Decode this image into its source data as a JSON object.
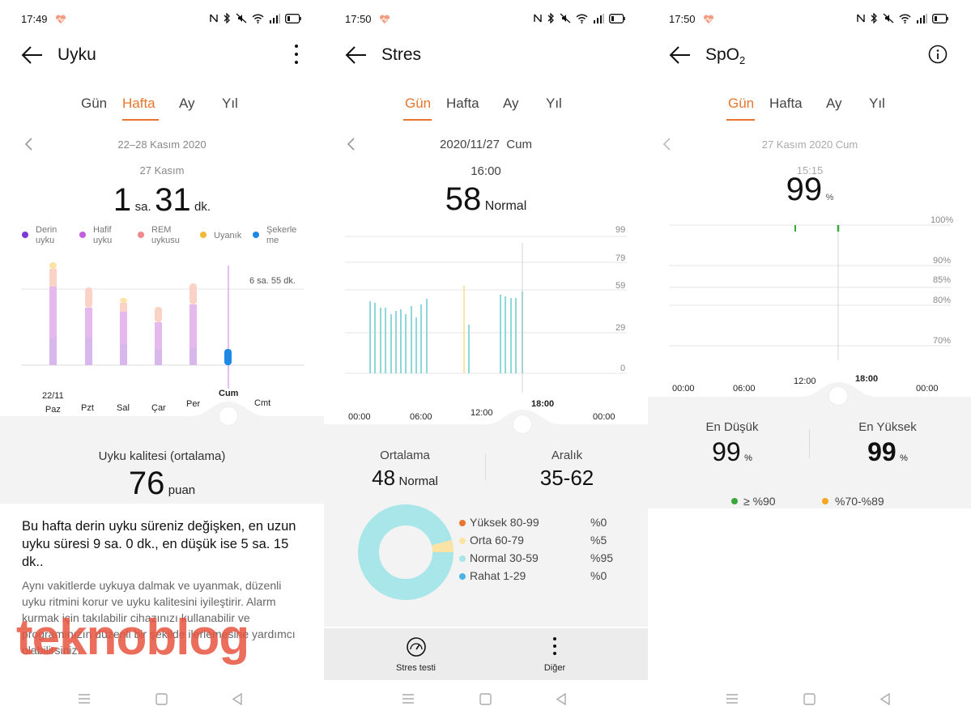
{
  "p1": {
    "status_time": "17:49",
    "title": "Uyku",
    "tabs": [
      "Gün",
      "Hafta",
      "Ay",
      "Yıl"
    ],
    "active_tab": "Hafta",
    "date_range": "22–28 Kasım 2020",
    "selected_date": "27 Kasım",
    "duration_hours": "1",
    "duration_hours_unit": "sa.",
    "duration_minutes": "31",
    "duration_minutes_unit": "dk.",
    "legend": [
      {
        "label": "Derin\nuyku",
        "color": "#7b39d6"
      },
      {
        "label": "Hafif\nuyku",
        "color": "#c25fe0"
      },
      {
        "label": "REM\nuykusu",
        "color": "#f08a8a"
      },
      {
        "label": "Uyanık",
        "color": "#f5b735"
      },
      {
        "label": "Şekerle\nme",
        "color": "#1e88e5"
      }
    ],
    "ref_label": "6 sa. 55 dk.",
    "days": [
      "22/11\nPaz",
      "Pzt",
      "Sal",
      "Çar",
      "Per",
      "Cum",
      "Cmt"
    ],
    "quality_label": "Uyku kalitesi (ortalama)",
    "quality_value": "76",
    "quality_unit": "puan",
    "summary": "Bu hafta derin uyku süreniz değişken, en uzun uyku süresi 9 sa. 0 dk., en düşük ise 5 sa. 15 dk..",
    "advice": "Aynı vakitlerde uykuya dalmak ve uyanmak, düzenli uyku ritmini korur ve uyku kalitesini iyileştirir. Alarm kurmak için takılabilir cihazınızı kullanabilir ve programınızın düzenli bir şekilde ilerlemesine yardımcı olabilirsiniz.",
    "watermark": "teknoblog"
  },
  "p2": {
    "status_time": "17:50",
    "title": "Stres",
    "tabs": [
      "Gün",
      "Hafta",
      "Ay",
      "Yıl"
    ],
    "active_tab": "Gün",
    "date": "2020/11/27  Cum",
    "time": "16:00",
    "value": "58",
    "value_label": "Normal",
    "y_ticks": [
      "99",
      "79",
      "59",
      "29",
      "0"
    ],
    "x_ticks": [
      "00:00",
      "06:00",
      "12:00",
      "18:00",
      "00:00"
    ],
    "avg_label": "Ortalama",
    "avg_value": "48",
    "avg_state": "Normal",
    "range_label": "Aralık",
    "range_value": "35-62",
    "donut": [
      {
        "label": "Yüksek 80-99",
        "pct": "%0",
        "value": 0,
        "color": "#e8752d"
      },
      {
        "label": "Orta 60-79",
        "pct": "%5",
        "value": 5,
        "color": "#fbe3a6"
      },
      {
        "label": "Normal 30-59",
        "pct": "%95",
        "value": 95,
        "color": "#a8e6ea"
      },
      {
        "label": "Rahat 1-29",
        "pct": "%0",
        "value": 0,
        "color": "#4bb3e6"
      }
    ],
    "btn_test": "Stres testi",
    "btn_more": "Diğer"
  },
  "p3": {
    "status_time": "17:50",
    "title": "SpO",
    "title_sub": "2",
    "tabs": [
      "Gün",
      "Hafta",
      "Ay",
      "Yıl"
    ],
    "active_tab": "Gün",
    "date": "27 Kasım 2020 Cum",
    "time": "15:15",
    "value": "99",
    "unit": "%",
    "y_ticks": [
      "100%",
      "90%",
      "85%",
      "80%",
      "70%"
    ],
    "x_ticks": [
      "00:00",
      "06:00",
      "12:00",
      "18:00",
      "00:00"
    ],
    "min_label": "En Düşük",
    "min_value": "99",
    "max_label": "En Yüksek",
    "max_value": "99",
    "legend_green": "≥ %90",
    "legend_orange": "%70-%89",
    "green": "#3aa83a",
    "orange": "#f5a623"
  }
}
